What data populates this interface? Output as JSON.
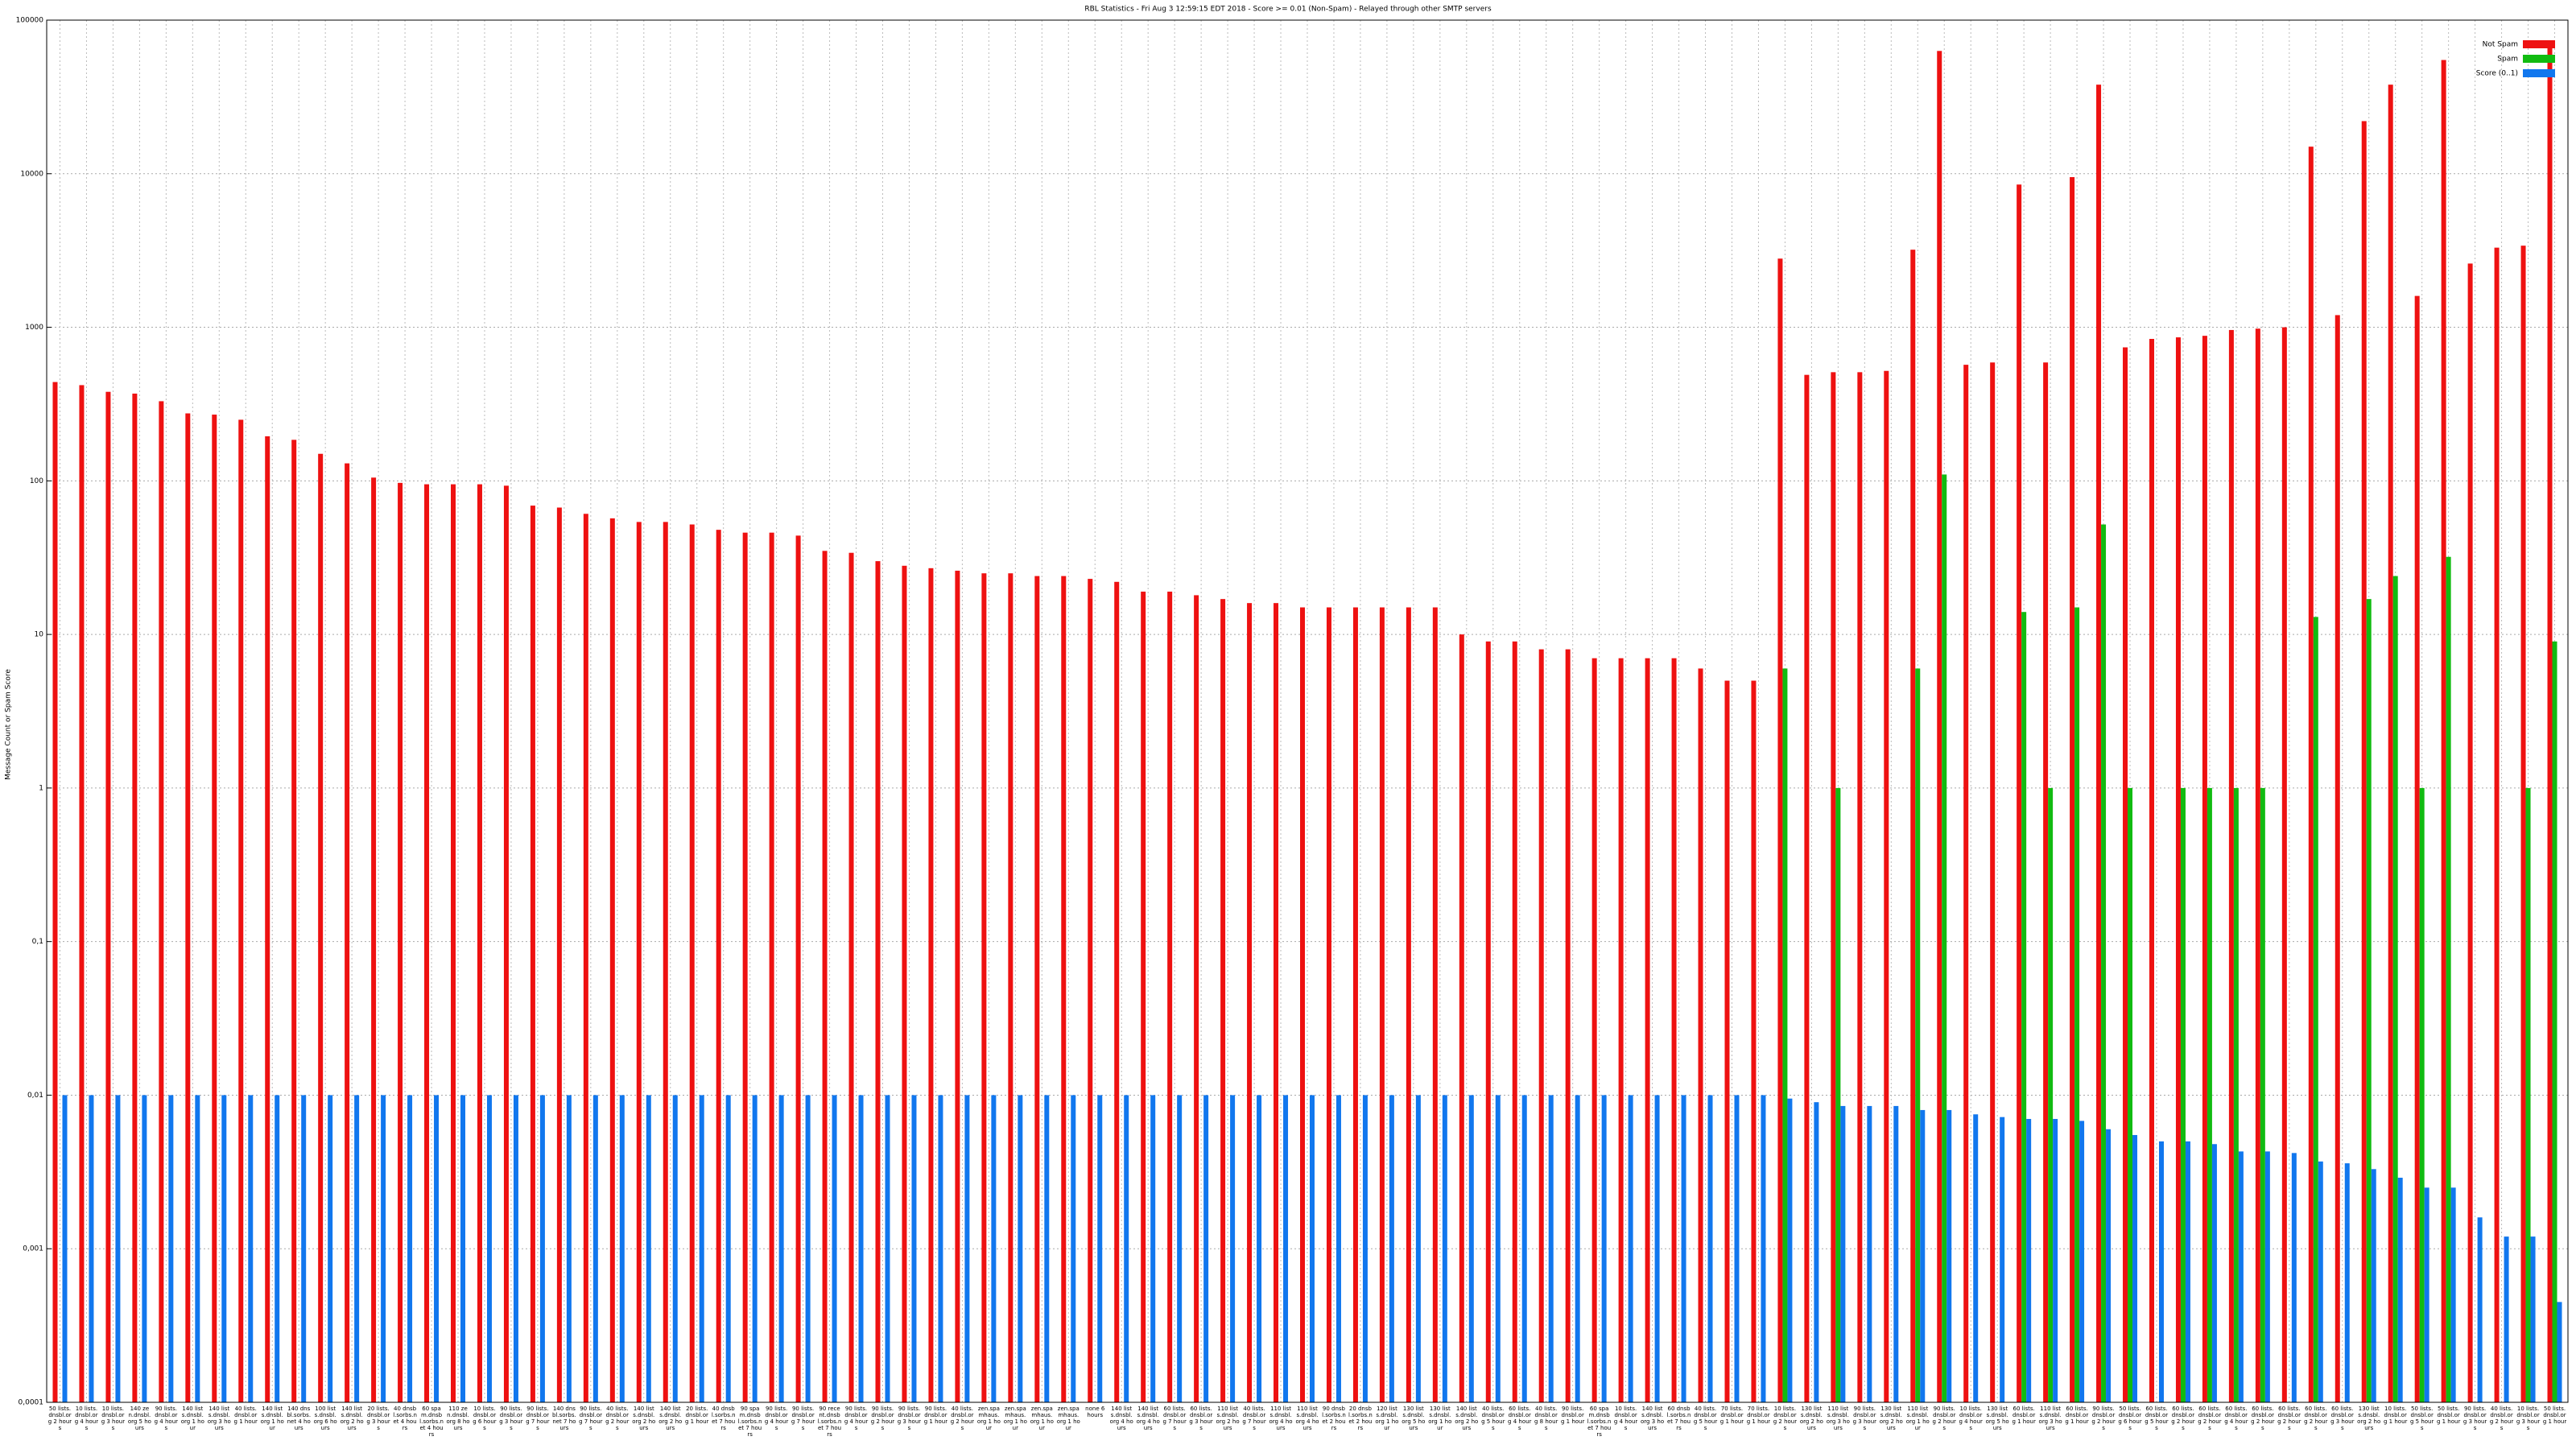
{
  "chart_data": {
    "type": "bar",
    "title": "RBL Statistics - Fri Aug  3 12:59:15 EDT 2018 - Score >= 0.01 (Non-Spam) - Relayed through other SMTP servers",
    "y_label": "Message Count or Spam Score",
    "log_scale": true,
    "grid": true,
    "legend": "upper right",
    "ylim": [
      0.0001,
      100000
    ],
    "yticks": [
      {
        "value": 0.0001,
        "label": "0,0001"
      },
      {
        "value": 0.001,
        "label": "0,001"
      },
      {
        "value": 0.01,
        "label": "0,01"
      },
      {
        "value": 0.1,
        "label": "0,1"
      },
      1,
      10,
      100,
      1000,
      10000,
      100000
    ],
    "categories": [
      "50 lists.dnsbl.org 2 hours",
      "10 lists.dnsbl.org 4 hours",
      "10 lists.dnsbl.org 3 hours",
      "140 zen.dnsbl.org 5 hours",
      "90 lists.dnsbl.org 4 hours",
      "140 lists.dnsbl.org 1 hour",
      "140 lists.dnsbl.org 3 hours",
      "40 lists.dnsbl.org 1 hour",
      "140 lists.dnsbl.org 1 hour",
      "140 dnsbl.sorbs.net 4 hours",
      "100 lists.dnsbl.org 6 hours",
      "140 lists.dnsbl.org 2 hours",
      "20 lists.dnsbl.org 3 hours",
      "40 dnsbl.sorbs.net 4 hours",
      "60 spam.dnsbl.sorbs.net 4 hours",
      "110 zen.dnsbl.org 8 hours",
      "10 lists.dnsbl.org 6 hours",
      "90 lists.dnsbl.org 3 hours",
      "90 lists.dnsbl.org 7 hours",
      "140 dnsbl.sorbs.net 7 hours",
      "90 lists.dnsbl.org 7 hours",
      "40 lists.dnsbl.org 2 hours",
      "140 lists.dnsbl.org 2 hours",
      "140 lists.dnsbl.org 2 hours",
      "20 lists.dnsbl.org 1 hour",
      "40 dnsbl.sorbs.net 7 hours",
      "90 spam.dnsbl.sorbs.net 7 hours",
      "90 lists.dnsbl.org 4 hours",
      "90 lists.dnsbl.org 7 hours",
      "90 recent.dnsbl.sorbs.net 7 hours",
      "90 lists.dnsbl.org 4 hours",
      "90 lists.dnsbl.org 2 hours",
      "90 lists.dnsbl.org 3 hours",
      "90 lists.dnsbl.org 1 hour",
      "40 lists.dnsbl.org 2 hours",
      "zen.spamhaus.org 1 hour",
      "zen.spamhaus.org 1 hour",
      "zen.spamhaus.org 1 hour",
      "zen.spamhaus.org 1 hour",
      "none 6 hours",
      "140 lists.dnsbl.org 4 hours",
      "140 lists.dnsbl.org 4 hours",
      "60 lists.dnsbl.org 7 hours",
      "60 lists.dnsbl.org 3 hours",
      "110 lists.dnsbl.org 2 hours",
      "40 lists.dnsbl.org 7 hours",
      "110 lists.dnsbl.org 4 hours",
      "110 lists.dnsbl.org 4 hours",
      "90 dnsbl.sorbs.net 2 hours",
      "20 dnsbl.sorbs.net 2 hours",
      "120 lists.dnsbl.org 1 hour",
      "130 lists.dnsbl.org 5 hours",
      "130 lists.dnsbl.org 1 hour",
      "140 lists.dnsbl.org 2 hours",
      "40 lists.dnsbl.org 5 hours",
      "60 lists.dnsbl.org 4 hours",
      "40 lists.dnsbl.org 8 hours",
      "90 lists.dnsbl.org 1 hour",
      "60 spam.dnsbl.sorbs.net 7 hours",
      "10 lists.dnsbl.org 4 hours",
      "140 lists.dnsbl.org 3 hours",
      "60 dnsbl.sorbs.net 7 hours",
      "40 lists.dnsbl.org 5 hours",
      "70 lists.dnsbl.org 1 hour",
      "70 lists.dnsbl.org 1 hour",
      "10 lists.dnsbl.org 2 hours",
      "130 lists.dnsbl.org 2 hours",
      "110 lists.dnsbl.org 3 hours",
      "90 lists.dnsbl.org 3 hours",
      "130 lists.dnsbl.org 2 hours",
      "110 lists.dnsbl.org 1 hour",
      "90 lists.dnsbl.org 2 hours",
      "10 lists.dnsbl.org 4 hours",
      "130 lists.dnsbl.org 5 hours",
      "60 lists.dnsbl.org 1 hour",
      "110 lists.dnsbl.org 3 hours",
      "60 lists.dnsbl.org 1 hour",
      "90 lists.dnsbl.org 2 hours",
      "50 lists.dnsbl.org 6 hours",
      "60 lists.dnsbl.org 5 hours",
      "60 lists.dnsbl.org 2 hours",
      "60 lists.dnsbl.org 2 hours",
      "60 lists.dnsbl.org 4 hours",
      "60 lists.dnsbl.org 2 hours",
      "60 lists.dnsbl.org 2 hours",
      "60 lists.dnsbl.org 2 hours",
      "60 lists.dnsbl.org 3 hours",
      "130 lists.dnsbl.org 2 hours",
      "10 lists.dnsbl.org 1 hour",
      "50 lists.dnsbl.org 5 hours",
      "50 lists.dnsbl.org 1 hour",
      "90 lists.dnsbl.org 3 hours",
      "40 lists.dnsbl.org 2 hours",
      "10 lists.dnsbl.org 3 hours",
      "50 lists.dnsbl.org 1 hour"
    ],
    "series": [
      {
        "name": "Not Spam",
        "color": "#ee1111",
        "values": [
          440,
          420,
          380,
          370,
          330,
          275,
          270,
          250,
          195,
          185,
          150,
          130,
          105,
          97,
          95,
          95,
          95,
          93,
          69,
          67,
          61,
          57,
          54,
          54,
          52,
          48,
          46,
          46,
          44,
          35,
          34,
          30,
          28,
          27,
          26,
          25,
          25,
          24,
          24,
          23,
          22,
          19,
          19,
          18,
          17,
          16,
          16,
          15,
          15,
          15,
          15,
          15,
          15,
          10,
          9,
          9,
          8,
          8,
          7,
          7,
          7,
          7,
          6,
          5,
          5,
          2800,
          490,
          510,
          510,
          520,
          3200,
          63000,
          570,
          590,
          8500,
          590,
          9500,
          38000,
          740,
          840,
          860,
          880,
          960,
          980,
          1000,
          15000,
          1200,
          22000,
          38000,
          1600,
          55000,
          2600,
          3300,
          3400,
          70000
        ]
      },
      {
        "name": "Spam",
        "color": "#11bb11",
        "values": [
          null,
          null,
          null,
          null,
          null,
          null,
          null,
          null,
          null,
          null,
          null,
          null,
          null,
          null,
          null,
          null,
          null,
          null,
          null,
          null,
          null,
          null,
          null,
          null,
          null,
          null,
          null,
          null,
          null,
          null,
          null,
          null,
          null,
          null,
          null,
          null,
          null,
          null,
          null,
          null,
          null,
          null,
          null,
          null,
          null,
          null,
          null,
          null,
          null,
          null,
          null,
          null,
          null,
          null,
          null,
          null,
          null,
          null,
          null,
          null,
          null,
          null,
          null,
          null,
          null,
          6,
          null,
          1,
          null,
          null,
          6,
          110,
          null,
          null,
          14,
          1,
          15,
          52,
          1,
          null,
          1,
          1,
          1,
          1,
          null,
          13,
          null,
          17,
          24,
          1,
          32,
          null,
          null,
          1,
          9
        ]
      },
      {
        "name": "Score (0..1)",
        "color": "#1177ee",
        "values": [
          0.01,
          0.01,
          0.01,
          0.01,
          0.01,
          0.01,
          0.01,
          0.01,
          0.01,
          0.01,
          0.01,
          0.01,
          0.01,
          0.01,
          0.01,
          0.01,
          0.01,
          0.01,
          0.01,
          0.01,
          0.01,
          0.01,
          0.01,
          0.01,
          0.01,
          0.01,
          0.01,
          0.01,
          0.01,
          0.01,
          0.01,
          0.01,
          0.01,
          0.01,
          0.01,
          0.01,
          0.01,
          0.01,
          0.01,
          0.01,
          0.01,
          0.01,
          0.01,
          0.01,
          0.01,
          0.01,
          0.01,
          0.01,
          0.01,
          0.01,
          0.01,
          0.01,
          0.01,
          0.01,
          0.01,
          0.01,
          0.01,
          0.01,
          0.01,
          0.01,
          0.01,
          0.01,
          0.01,
          0.01,
          0.01,
          0.0095,
          0.009,
          0.0085,
          0.0085,
          0.0085,
          0.008,
          0.008,
          0.0075,
          0.0072,
          0.007,
          0.007,
          0.0068,
          0.006,
          0.0055,
          0.005,
          0.005,
          0.0048,
          0.0043,
          0.0043,
          0.0042,
          0.0037,
          0.0036,
          0.0033,
          0.0029,
          0.0025,
          0.0025,
          0.0016,
          0.0012,
          0.0012,
          0.00045
        ]
      }
    ]
  }
}
